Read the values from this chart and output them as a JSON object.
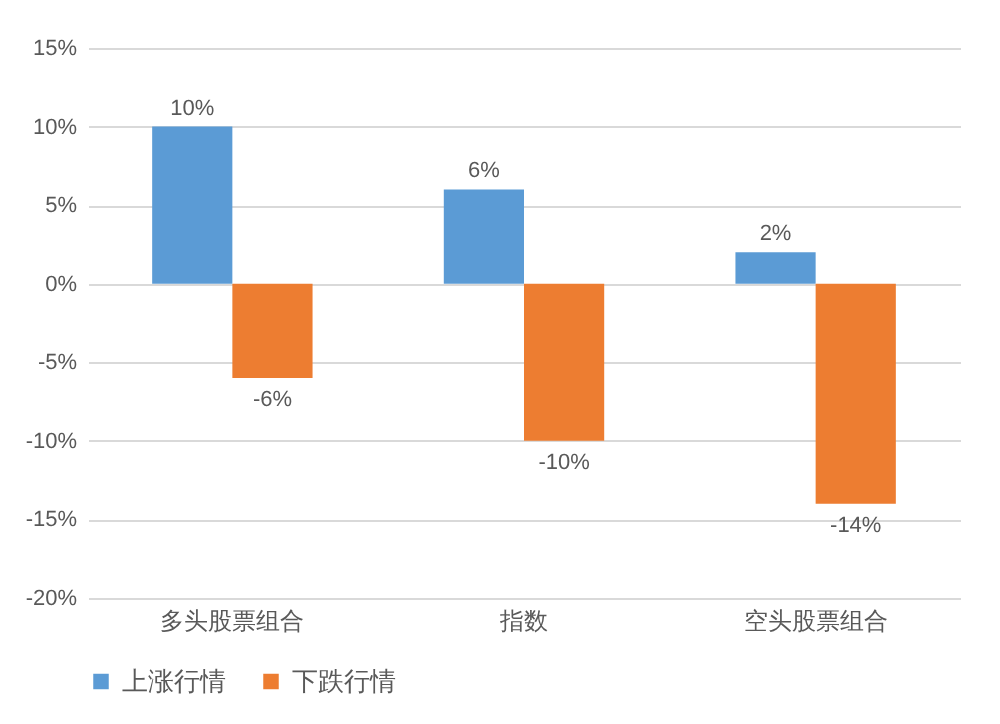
{
  "chart_data": {
    "type": "bar",
    "categories": [
      "多头股票组合",
      "指数",
      "空头股票组合"
    ],
    "series": [
      {
        "name": "上涨行情",
        "color": "#5b9bd5",
        "values": [
          10,
          6,
          2
        ],
        "value_labels": [
          "10%",
          "6%",
          "2%"
        ]
      },
      {
        "name": "下跌行情",
        "color": "#ed7d31",
        "values": [
          -6,
          -10,
          -14
        ],
        "value_labels": [
          "-6%",
          "-10%",
          "-14%"
        ]
      }
    ],
    "ylim": [
      -20,
      15
    ],
    "yticks": [
      {
        "value": -20,
        "label": "-20%"
      },
      {
        "value": -15,
        "label": "-15%"
      },
      {
        "value": -10,
        "label": "-10%"
      },
      {
        "value": -5,
        "label": "-5%"
      },
      {
        "value": 0,
        "label": "0%"
      },
      {
        "value": 5,
        "label": "5%"
      },
      {
        "value": 10,
        "label": "10%"
      },
      {
        "value": 15,
        "label": "15%"
      }
    ],
    "grid": "y",
    "legend": "bottom"
  }
}
